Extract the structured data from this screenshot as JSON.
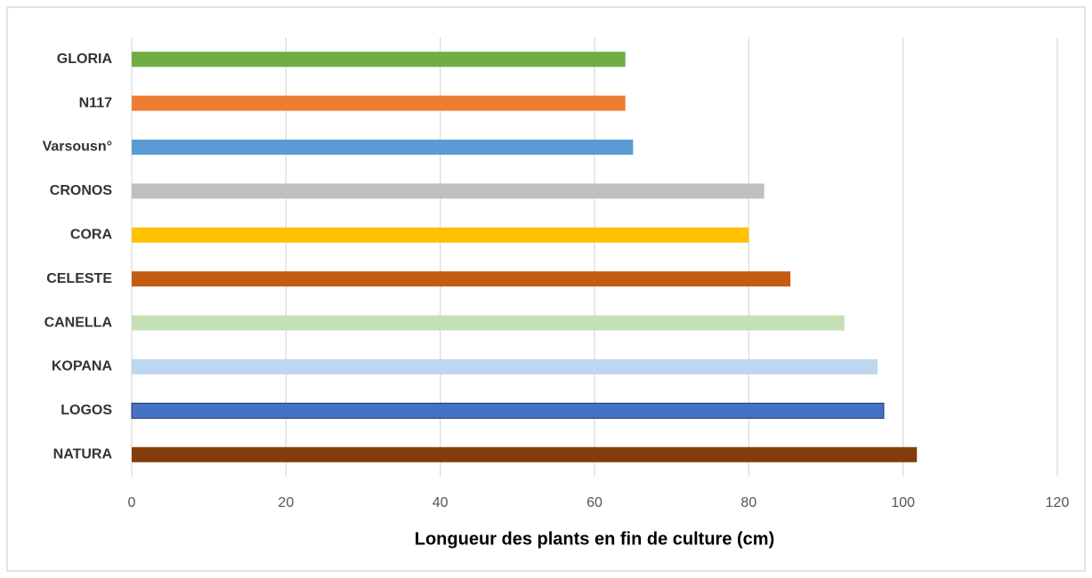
{
  "chart_data": {
    "type": "barh",
    "x_label": "Longueur des plants en fin de culture (cm)",
    "categories": [
      "GLORIA",
      "N117",
      "Varsousn°",
      "CRONOS",
      "CORA",
      "CELESTE",
      "CANELLA",
      "KOPANA",
      "LOGOS",
      "NATURA"
    ],
    "values": [
      64,
      64,
      65,
      82,
      80,
      85.4,
      92.4,
      96.7,
      97.5,
      101.8
    ],
    "colors": [
      "#70ad47",
      "#ed7d31",
      "#5b9bd5",
      "#bfbfbf",
      "#ffc000",
      "#c55a11",
      "#c5e0b4",
      "#bdd7ee",
      "#4472c4",
      "#843c0c"
    ],
    "xlim": [
      0,
      120
    ],
    "xticks": [
      0,
      20,
      40,
      60,
      80,
      100,
      120
    ],
    "grid": true
  }
}
